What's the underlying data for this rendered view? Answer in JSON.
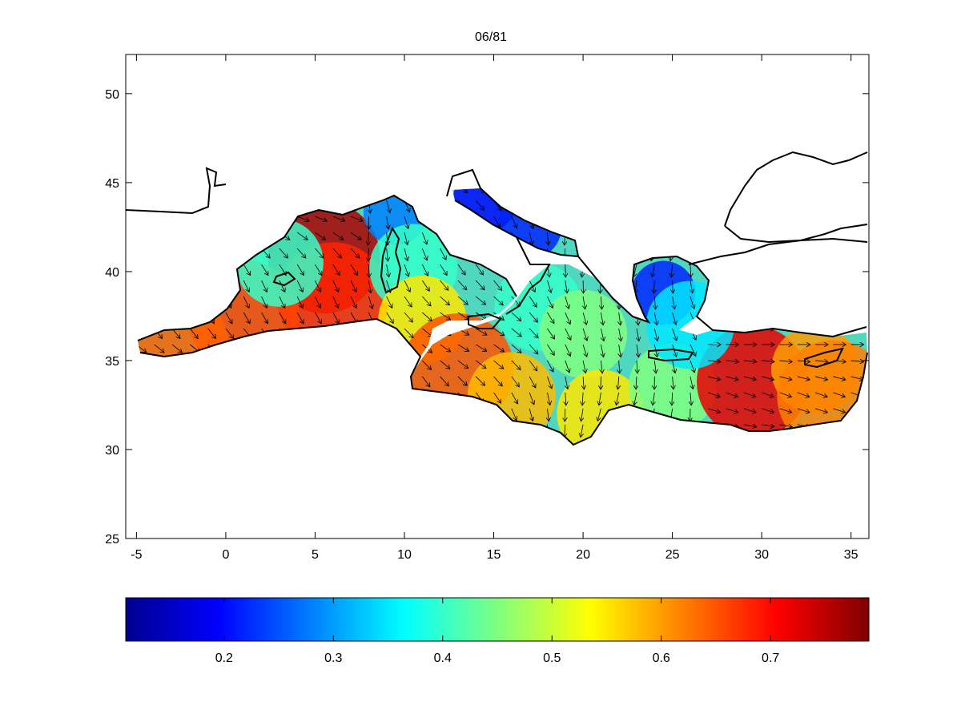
{
  "figure": {
    "title": "06/81"
  },
  "chart_data": {
    "type": "heatmap",
    "title": "06/81",
    "xlabel": "",
    "ylabel": "",
    "xlim": [
      -5.6,
      36
    ],
    "ylim": [
      25,
      52.2
    ],
    "x_ticks": [
      -5,
      0,
      5,
      10,
      15,
      20,
      25,
      30,
      35
    ],
    "y_ticks": [
      25,
      30,
      35,
      40,
      45,
      50
    ],
    "grid": false,
    "colormap": "jet",
    "colorbar": {
      "orientation": "horizontal",
      "placement": "bottom",
      "range": [
        0.11,
        0.79
      ],
      "ticks": [
        0.2,
        0.3,
        0.4,
        0.5,
        0.6,
        0.7
      ]
    },
    "field_hotspots": [
      {
        "lon": 5.5,
        "lat": 40.8,
        "value": 0.76
      },
      {
        "lon": 6.0,
        "lat": 38.5,
        "value": 0.68
      },
      {
        "lon": 1.0,
        "lat": 37.5,
        "value": 0.66
      },
      {
        "lon": -3.0,
        "lat": 35.9,
        "value": 0.64
      },
      {
        "lon": 3.0,
        "lat": 40.5,
        "value": 0.4
      },
      {
        "lon": 9.5,
        "lat": 43.3,
        "value": 0.28
      },
      {
        "lon": 10.5,
        "lat": 40.2,
        "value": 0.4
      },
      {
        "lon": 11.0,
        "lat": 37.3,
        "value": 0.55
      },
      {
        "lon": 13.0,
        "lat": 34.5,
        "value": 0.65
      },
      {
        "lon": 16.0,
        "lat": 33.0,
        "value": 0.58
      },
      {
        "lon": 17.5,
        "lat": 38.0,
        "value": 0.4
      },
      {
        "lon": 20.0,
        "lat": 36.5,
        "value": 0.45
      },
      {
        "lon": 21.0,
        "lat": 32.0,
        "value": 0.55
      },
      {
        "lon": 25.0,
        "lat": 33.5,
        "value": 0.45
      },
      {
        "lon": 29.5,
        "lat": 33.8,
        "value": 0.72
      },
      {
        "lon": 33.0,
        "lat": 34.5,
        "value": 0.6
      },
      {
        "lon": 34.0,
        "lat": 33.0,
        "value": 0.62
      },
      {
        "lon": 14.5,
        "lat": 44.0,
        "value": 0.2
      },
      {
        "lon": 17.0,
        "lat": 42.5,
        "value": 0.22
      },
      {
        "lon": 24.5,
        "lat": 38.8,
        "value": 0.22
      },
      {
        "lon": 26.0,
        "lat": 37.0,
        "value": 0.35
      }
    ],
    "vector_field": "mean direction southward/south-eastward over most of the basin"
  }
}
